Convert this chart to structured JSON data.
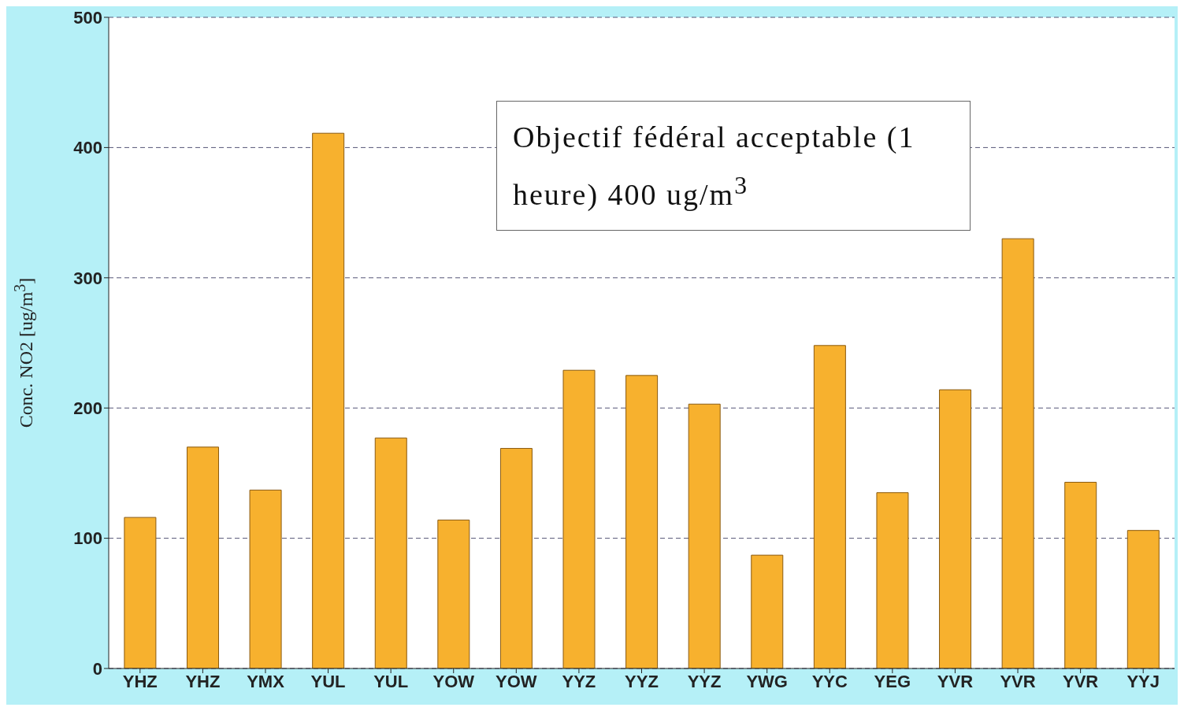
{
  "chart_data": {
    "type": "bar",
    "ylabel": "Conc. NO2 [ug/m$^{3}$]",
    "categories": [
      "YHZ",
      "YHZ",
      "YMX",
      "YUL",
      "YUL",
      "YOW",
      "YOW",
      "YYZ",
      "YYZ",
      "YYZ",
      "YWG",
      "YYC",
      "YEG",
      "YVR",
      "YVR",
      "YVR",
      "YYJ"
    ],
    "values": [
      116,
      170,
      137,
      411,
      177,
      114,
      169,
      229,
      225,
      203,
      87,
      248,
      135,
      214,
      330,
      143,
      106
    ],
    "color": "#f7b12e",
    "ylim": [
      0,
      500
    ],
    "yticks": [
      0,
      100,
      200,
      300,
      400,
      500
    ],
    "grid": "y",
    "annotations": [
      "Objectif fédéral acceptable (1 heure) 400 ug/m$^{3}$"
    ]
  }
}
